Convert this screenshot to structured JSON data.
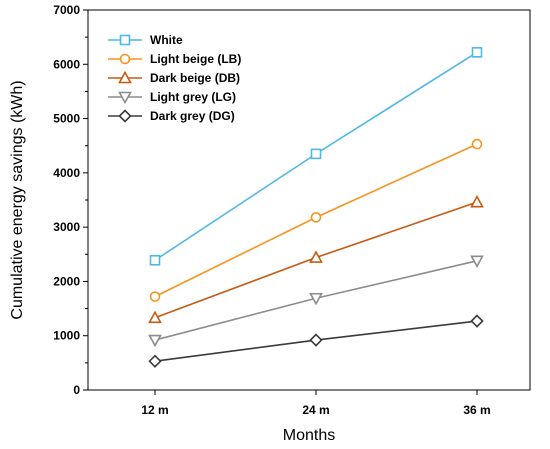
{
  "chart_data": {
    "type": "line",
    "title": "",
    "xlabel": "Months",
    "ylabel": "Cumulative energy savings (kWh)",
    "categories": [
      "12 m",
      "24 m",
      "36 m"
    ],
    "ylim": [
      0,
      7000
    ],
    "yticks": [
      0,
      1000,
      2000,
      3000,
      4000,
      5000,
      6000,
      7000
    ],
    "grid": false,
    "legend_position": "top-left",
    "series": [
      {
        "name": "White",
        "values": [
          2390,
          4350,
          6220
        ],
        "color": "#4fb8e8",
        "marker": "square"
      },
      {
        "name": "Light beige (LB)",
        "values": [
          1720,
          3180,
          4530
        ],
        "color": "#f7941d",
        "marker": "circle"
      },
      {
        "name": "Dark beige (DB)",
        "values": [
          1330,
          2440,
          3460
        ],
        "color": "#c75a12",
        "marker": "triangle-up"
      },
      {
        "name": "Light grey (LG)",
        "values": [
          920,
          1690,
          2380
        ],
        "color": "#8c8c8c",
        "marker": "triangle-down"
      },
      {
        "name": "Dark grey (DG)",
        "values": [
          530,
          920,
          1270
        ],
        "color": "#3a3a3a",
        "marker": "diamond"
      }
    ]
  }
}
